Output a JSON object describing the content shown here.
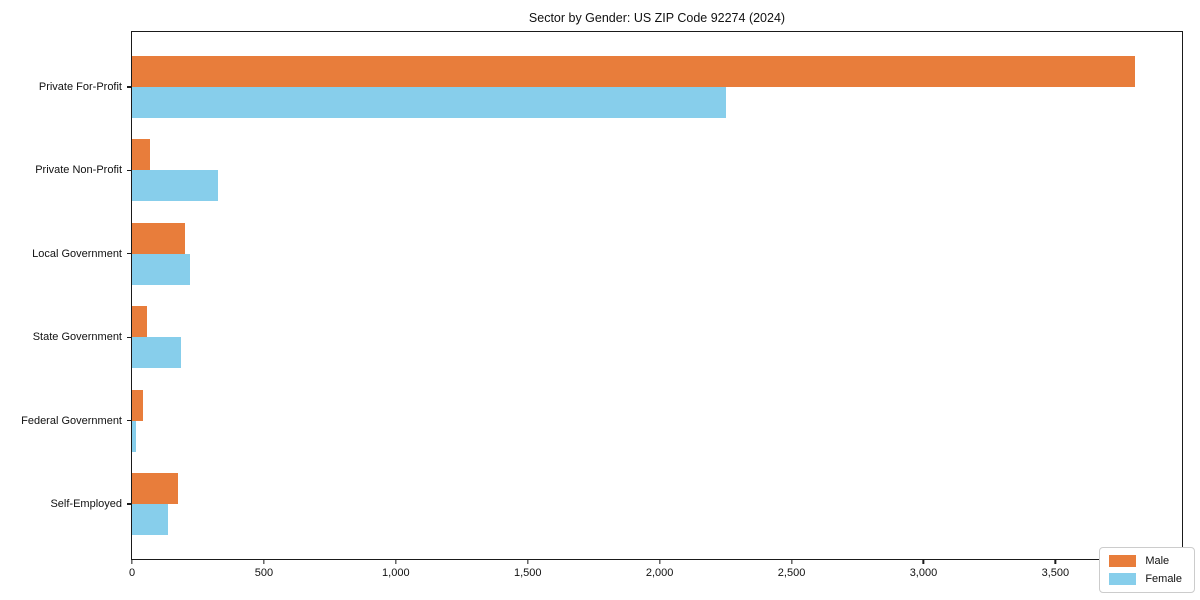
{
  "title": "Sector by Gender: US ZIP Code 92274 (2024)",
  "colors": {
    "male": "#e87d3b",
    "female": "#87ceeb",
    "axis": "#1a1a1a",
    "legend_border": "#cccccc",
    "background": "#ffffff"
  },
  "chart_data": {
    "type": "bar",
    "orientation": "horizontal",
    "title": "Sector by Gender: US ZIP Code 92274 (2024)",
    "categories": [
      "Private For-Profit",
      "Private Non-Profit",
      "Local Government",
      "State Government",
      "Federal Government",
      "Self-Employed"
    ],
    "series": [
      {
        "name": "Male",
        "color": "#e87d3b",
        "values": [
          3800,
          70,
          200,
          55,
          40,
          175
        ]
      },
      {
        "name": "Female",
        "color": "#87ceeb",
        "values": [
          2250,
          325,
          220,
          185,
          15,
          135
        ]
      }
    ],
    "xlabel": "",
    "ylabel": "",
    "xlim": [
      0,
      3980
    ],
    "xticks": [
      0,
      500,
      1000,
      1500,
      2000,
      2500,
      3000,
      3500
    ],
    "xtick_labels": [
      "0",
      "500",
      "1,000",
      "1,500",
      "2,000",
      "2,500",
      "3,000",
      "3,500"
    ],
    "grid": false,
    "legend": {
      "position": "lower right",
      "entries": [
        "Male",
        "Female"
      ]
    }
  }
}
